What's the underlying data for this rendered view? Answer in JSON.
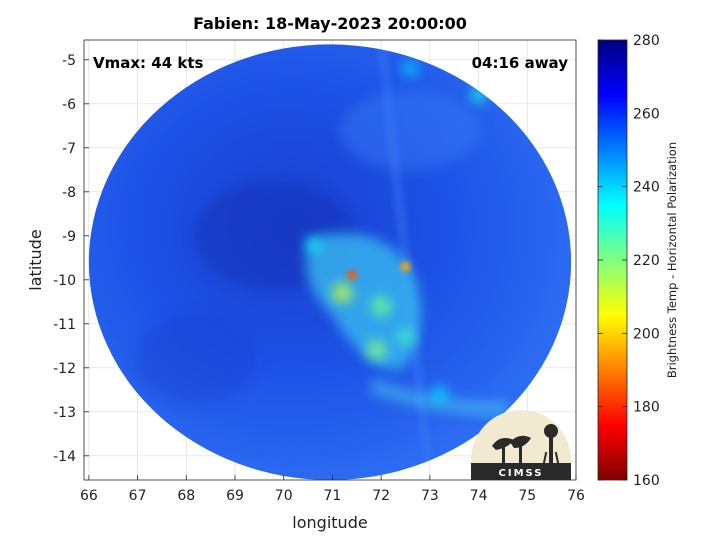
{
  "chart_data": {
    "type": "heatmap",
    "title": "Fabien: 18-May-2023 20:00:00",
    "xlabel": "longitude",
    "ylabel": "latitude",
    "xlim": [
      65.9,
      76.0
    ],
    "ylim": [
      -14.55,
      -4.55
    ],
    "x_ticks": [
      66,
      67,
      68,
      69,
      70,
      71,
      72,
      73,
      74,
      75,
      76
    ],
    "y_ticks": [
      -5,
      -6,
      -7,
      -8,
      -9,
      -10,
      -11,
      -12,
      -13,
      -14
    ],
    "grid": true,
    "annotations": {
      "vmax": "Vmax: 44 kts",
      "time_away": "04:16 away"
    },
    "swath": {
      "center_lon": 70.95,
      "center_lat": -9.6,
      "radius_lon": 4.95,
      "radius_lat": 4.95
    },
    "features": [
      {
        "lon": 71.4,
        "lat": -9.9,
        "tb": 185
      },
      {
        "lon": 72.5,
        "lat": -9.7,
        "tb": 195
      },
      {
        "lon": 71.2,
        "lat": -10.3,
        "tb": 212
      },
      {
        "lon": 72.0,
        "lat": -10.6,
        "tb": 222
      },
      {
        "lon": 71.9,
        "lat": -11.6,
        "tb": 220
      },
      {
        "lon": 72.5,
        "lat": -11.3,
        "tb": 228
      },
      {
        "lon": 70.6,
        "lat": -9.2,
        "tb": 234
      },
      {
        "lon": 73.2,
        "lat": -12.6,
        "tb": 238
      },
      {
        "lon": 74.0,
        "lat": -5.8,
        "tb": 232
      },
      {
        "lon": 72.6,
        "lat": -5.2,
        "tb": 240
      }
    ],
    "colorbar": {
      "label": "Brightness Temp - Horizontal Polarization",
      "min": 160,
      "max": 280,
      "ticks": [
        160,
        180,
        200,
        220,
        240,
        260,
        280
      ],
      "colormap": "jet"
    }
  },
  "logo": {
    "text": "CIMSS"
  }
}
